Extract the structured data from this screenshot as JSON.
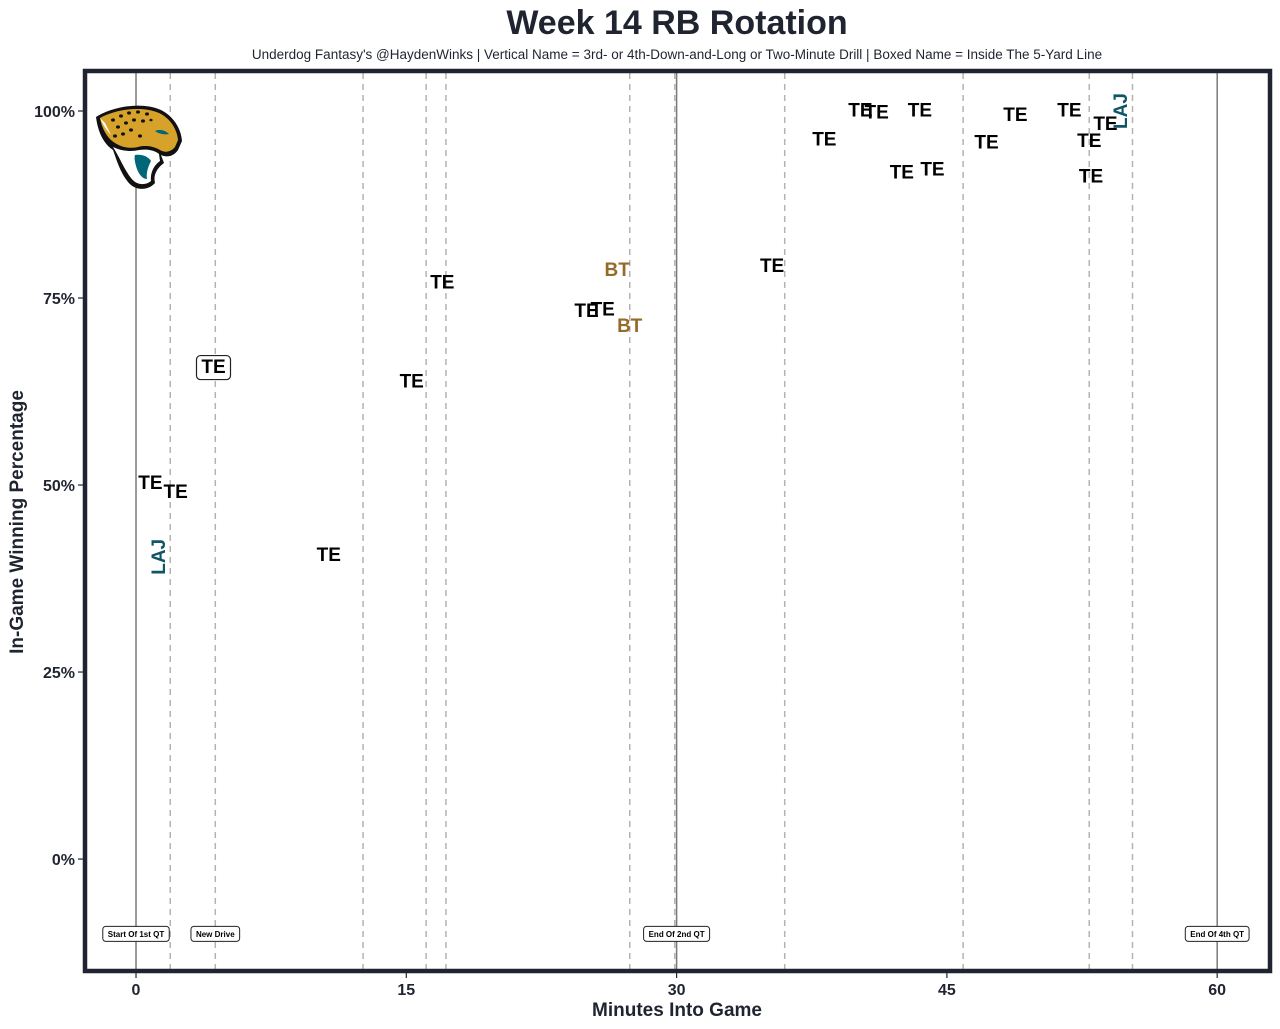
{
  "chart_data": {
    "type": "scatter",
    "title": "Week 14 RB Rotation",
    "subtitle": "Underdog Fantasy's @HaydenWinks | Vertical Name = 3rd- or 4th-Down-and-Long or Two-Minute Drill | Boxed Name = Inside The 5-Yard Line",
    "xlabel": "Minutes Into Game",
    "ylabel": "In-Game Winning Percentage",
    "xlim": [
      -2.72,
      62.82
    ],
    "ylim": [
      -14.7,
      105.08
    ],
    "xticks": [
      {
        "value": 0,
        "label": "0"
      },
      {
        "value": 15,
        "label": "15"
      },
      {
        "value": 30,
        "label": "30"
      },
      {
        "value": 45,
        "label": "45"
      },
      {
        "value": 60,
        "label": "60"
      }
    ],
    "yticks": [
      {
        "value": 0,
        "label": "0%"
      },
      {
        "value": 25,
        "label": "25%"
      },
      {
        "value": 50,
        "label": "50%"
      },
      {
        "value": 75,
        "label": "75%"
      },
      {
        "value": 100,
        "label": "100%"
      }
    ],
    "grid": false,
    "team_logo": "jacksonville-jaguars-logo",
    "player_colors": {
      "TE": "#000000",
      "BT": "#966a28",
      "LAJ": "#0e5566"
    },
    "quarter_lines": [
      0,
      30,
      60
    ],
    "drive_lines": [
      1.9,
      4.4,
      12.6,
      16.1,
      17.2,
      27.4,
      29.9,
      36.0,
      45.9,
      52.9,
      55.3
    ],
    "annotations": [
      {
        "x": 0,
        "y": -10,
        "text": "Start Of 1st QT"
      },
      {
        "x": 4.4,
        "y": -10,
        "text": "New Drive"
      },
      {
        "x": 30,
        "y": -10,
        "text": "End Of 2nd QT"
      },
      {
        "x": 60,
        "y": -10,
        "text": "End Of 4th QT"
      }
    ],
    "points": [
      {
        "label": "TE",
        "x": 0.8,
        "y": 50.2,
        "style": "normal"
      },
      {
        "label": "TE",
        "x": 2.2,
        "y": 49.0,
        "style": "normal"
      },
      {
        "label": "LAJ",
        "x": 1.3,
        "y": 40.4,
        "style": "vertical"
      },
      {
        "label": "TE",
        "x": 4.3,
        "y": 65.7,
        "style": "boxed"
      },
      {
        "label": "TE",
        "x": 10.7,
        "y": 40.6,
        "style": "normal"
      },
      {
        "label": "TE",
        "x": 15.3,
        "y": 63.8,
        "style": "normal"
      },
      {
        "label": "TE",
        "x": 17.0,
        "y": 77.0,
        "style": "normal"
      },
      {
        "label": "TE",
        "x": 25.0,
        "y": 73.2,
        "style": "normal"
      },
      {
        "label": "TE",
        "x": 25.9,
        "y": 73.4,
        "style": "normal"
      },
      {
        "label": "BT",
        "x": 26.7,
        "y": 78.7,
        "style": "normal"
      },
      {
        "label": "BT",
        "x": 27.4,
        "y": 71.2,
        "style": "normal"
      },
      {
        "label": "TE",
        "x": 35.3,
        "y": 79.2,
        "style": "normal"
      },
      {
        "label": "TE",
        "x": 38.2,
        "y": 96.1,
        "style": "normal"
      },
      {
        "label": "TE",
        "x": 40.2,
        "y": 100.0,
        "style": "normal"
      },
      {
        "label": "TE",
        "x": 41.1,
        "y": 99.7,
        "style": "normal"
      },
      {
        "label": "TE",
        "x": 42.5,
        "y": 91.7,
        "style": "normal"
      },
      {
        "label": "TE",
        "x": 43.5,
        "y": 100.0,
        "style": "normal"
      },
      {
        "label": "TE",
        "x": 44.2,
        "y": 92.1,
        "style": "normal"
      },
      {
        "label": "TE",
        "x": 47.2,
        "y": 95.7,
        "style": "normal"
      },
      {
        "label": "TE",
        "x": 48.8,
        "y": 99.4,
        "style": "normal"
      },
      {
        "label": "TE",
        "x": 51.8,
        "y": 100.0,
        "style": "normal"
      },
      {
        "label": "TE",
        "x": 52.9,
        "y": 95.9,
        "style": "normal"
      },
      {
        "label": "TE",
        "x": 53.0,
        "y": 91.2,
        "style": "normal"
      },
      {
        "label": "TE",
        "x": 53.8,
        "y": 98.2,
        "style": "normal"
      },
      {
        "label": "LAJ",
        "x": 54.7,
        "y": 100.0,
        "style": "vertical"
      }
    ]
  }
}
